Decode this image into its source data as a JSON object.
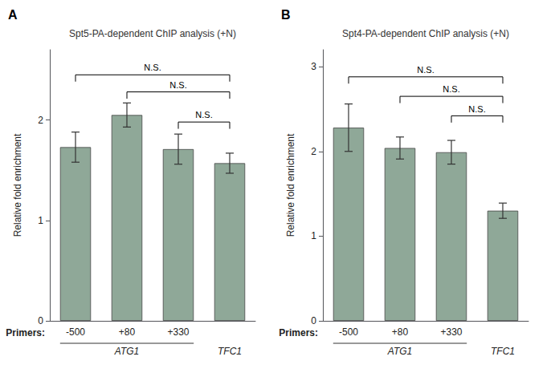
{
  "chart_data": [
    {
      "type": "bar",
      "panel_label": "A",
      "title": "Spt5-PA-dependent ChIP analysis (+N)",
      "categories": [
        "-500",
        "+80",
        "+330",
        null
      ],
      "values": [
        1.73,
        2.05,
        1.71,
        1.57
      ],
      "errors": [
        0.15,
        0.12,
        0.15,
        0.1
      ],
      "color": "#8fA898",
      "ylim": [
        0,
        2.7
      ],
      "yticks": [
        0,
        1,
        2
      ],
      "ylabel": "Relative fold enrichment",
      "grid": false,
      "sig_lines": [
        {
          "x1": 0,
          "x2": 3,
          "y": 2.45,
          "label": "N.S."
        },
        {
          "x1": 1,
          "x2": 3,
          "y": 2.28,
          "label": "N.S."
        },
        {
          "x1": 2,
          "x2": 3,
          "y": 1.98,
          "label": "N.S."
        }
      ],
      "primers_label": "Primers:",
      "gene_labels": [
        {
          "label": "ATG1",
          "from": 0,
          "to": 2
        },
        {
          "label": "TFC1",
          "from": 3,
          "to": 3
        }
      ]
    },
    {
      "type": "bar",
      "panel_label": "B",
      "title": "Spt4-PA-dependent ChIP analysis (+N)",
      "categories": [
        "-500",
        "+80",
        "+330",
        null
      ],
      "values": [
        2.28,
        2.04,
        1.99,
        1.3
      ],
      "errors": [
        0.28,
        0.13,
        0.14,
        0.09
      ],
      "color": "#8fA898",
      "ylim": [
        0,
        3.2
      ],
      "yticks": [
        0,
        1,
        2,
        3
      ],
      "ylabel": "Relative fold enrichment",
      "grid": false,
      "sig_lines": [
        {
          "x1": 0,
          "x2": 3,
          "y": 2.88,
          "label": "N.S."
        },
        {
          "x1": 1,
          "x2": 3,
          "y": 2.65,
          "label": "N.S."
        },
        {
          "x1": 2,
          "x2": 3,
          "y": 2.42,
          "label": "N.S."
        }
      ],
      "primers_label": "Primers:",
      "gene_labels": [
        {
          "label": "ATG1",
          "from": 0,
          "to": 2
        },
        {
          "label": "TFC1",
          "from": 3,
          "to": 3
        }
      ]
    }
  ]
}
